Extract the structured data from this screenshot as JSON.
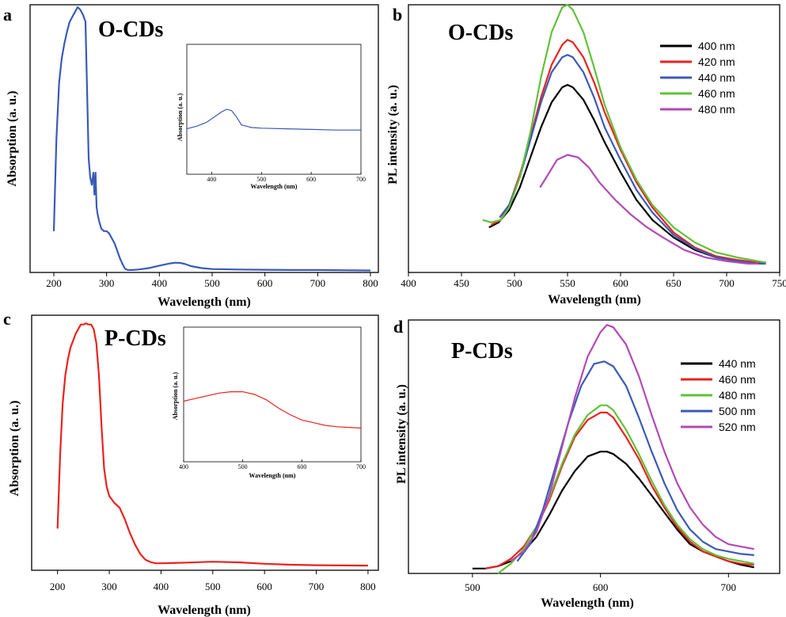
{
  "colors": {
    "black": "#000000",
    "red": "#e8231f",
    "blue": "#3a5bb5",
    "green": "#62c13a",
    "purple": "#b24ab5"
  },
  "chart_data": [
    {
      "panel": "a",
      "type": "line",
      "title": "O-CDs",
      "xlabel": "Wavelength (nm)",
      "ylabel": "Absorption (a. u.)",
      "xlim": [
        155,
        815
      ],
      "ylim": [
        0,
        1.1
      ],
      "xticks": [
        200,
        300,
        400,
        500,
        600,
        700,
        800
      ],
      "y_ticks_shown": false,
      "series": [
        {
          "color": "#3a5bb5",
          "x": [
            200,
            205,
            210,
            215,
            220,
            225,
            230,
            235,
            240,
            245,
            250,
            255,
            260,
            263,
            266,
            269,
            272,
            275,
            277,
            279,
            281,
            283,
            286,
            290,
            295,
            300,
            305,
            310,
            315,
            320,
            325,
            330,
            335,
            340,
            350,
            360,
            380,
            400,
            420,
            430,
            440,
            450,
            460,
            480,
            500,
            550,
            600,
            650,
            700,
            750,
            800
          ],
          "y": [
            0.17,
            0.55,
            0.78,
            0.88,
            0.94,
            0.99,
            1.03,
            1.05,
            1.07,
            1.09,
            1.08,
            1.06,
            1.03,
            0.75,
            0.47,
            0.39,
            0.36,
            0.41,
            0.32,
            0.41,
            0.27,
            0.24,
            0.21,
            0.18,
            0.17,
            0.17,
            0.16,
            0.14,
            0.12,
            0.09,
            0.06,
            0.035,
            0.015,
            0.01,
            0.01,
            0.012,
            0.018,
            0.028,
            0.037,
            0.04,
            0.039,
            0.034,
            0.026,
            0.018,
            0.014,
            0.012,
            0.011,
            0.01,
            0.01,
            0.009,
            0.008
          ]
        }
      ],
      "inset": {
        "xlabel": "Wavelength (nm)",
        "ylabel": "Absorption (a. u.)",
        "xlim": [
          350,
          700
        ],
        "ylim": [
          0,
          1
        ],
        "xticks": [
          400,
          500,
          600,
          700
        ],
        "series": [
          {
            "color": "#3a5bb5",
            "x": [
              350,
              370,
              390,
              405,
              420,
              430,
              440,
              450,
              460,
              470,
              480,
              500,
              550,
              600,
              650,
              700
            ],
            "y": [
              0.35,
              0.37,
              0.4,
              0.44,
              0.48,
              0.5,
              0.49,
              0.44,
              0.38,
              0.37,
              0.36,
              0.355,
              0.35,
              0.345,
              0.34,
              0.34
            ]
          }
        ]
      }
    },
    {
      "panel": "b",
      "type": "line",
      "title": "O-CDs",
      "xlabel": "Wavelength (nm)",
      "ylabel": "PL intensity (a. u.)",
      "xlim": [
        400,
        750
      ],
      "ylim": [
        0,
        1.07
      ],
      "xticks": [
        400,
        450,
        500,
        550,
        600,
        650,
        700,
        750
      ],
      "y_ticks_shown": false,
      "legend_position": "top-right",
      "series": [
        {
          "name": "400 nm",
          "color": "#000000",
          "x": [
            476,
            485,
            495,
            505,
            515,
            525,
            535,
            545,
            550,
            555,
            565,
            575,
            585,
            600,
            615,
            630,
            650,
            670,
            690,
            710,
            730,
            737
          ],
          "y": [
            0.18,
            0.2,
            0.25,
            0.34,
            0.46,
            0.58,
            0.68,
            0.74,
            0.75,
            0.74,
            0.69,
            0.61,
            0.52,
            0.4,
            0.29,
            0.21,
            0.14,
            0.09,
            0.06,
            0.045,
            0.04,
            0.04
          ]
        },
        {
          "name": "420 nm",
          "color": "#e8231f",
          "x": [
            478,
            487,
            495,
            505,
            515,
            525,
            535,
            545,
            550,
            555,
            565,
            575,
            585,
            600,
            615,
            630,
            650,
            670,
            690,
            710,
            730,
            737
          ],
          "y": [
            0.19,
            0.21,
            0.27,
            0.39,
            0.54,
            0.7,
            0.83,
            0.91,
            0.93,
            0.92,
            0.86,
            0.76,
            0.64,
            0.49,
            0.36,
            0.26,
            0.16,
            0.1,
            0.065,
            0.05,
            0.04,
            0.04
          ]
        },
        {
          "name": "440 nm",
          "color": "#3a5bb5",
          "x": [
            486,
            495,
            505,
            515,
            525,
            535,
            545,
            550,
            555,
            565,
            575,
            585,
            600,
            615,
            630,
            650,
            670,
            690,
            710,
            730,
            737
          ],
          "y": [
            0.22,
            0.27,
            0.38,
            0.53,
            0.68,
            0.8,
            0.86,
            0.87,
            0.86,
            0.8,
            0.7,
            0.58,
            0.45,
            0.33,
            0.24,
            0.15,
            0.095,
            0.06,
            0.045,
            0.035,
            0.035
          ]
        },
        {
          "name": "460 nm",
          "color": "#62c13a",
          "x": [
            470,
            478,
            487,
            495,
            505,
            515,
            525,
            535,
            545,
            550,
            555,
            565,
            575,
            585,
            600,
            615,
            630,
            650,
            670,
            690,
            710,
            730,
            737
          ],
          "y": [
            0.21,
            0.2,
            0.21,
            0.26,
            0.38,
            0.56,
            0.78,
            0.96,
            1.06,
            1.07,
            1.05,
            0.96,
            0.82,
            0.67,
            0.5,
            0.37,
            0.27,
            0.18,
            0.12,
            0.08,
            0.06,
            0.045,
            0.04
          ]
        },
        {
          "name": "480 nm",
          "color": "#b24ab5",
          "x": [
            524,
            530,
            540,
            550,
            560,
            570,
            580,
            595,
            610,
            625,
            640,
            660,
            680,
            700,
            720,
            730
          ],
          "y": [
            0.34,
            0.38,
            0.45,
            0.47,
            0.46,
            0.42,
            0.36,
            0.29,
            0.23,
            0.18,
            0.14,
            0.09,
            0.06,
            0.045,
            0.035,
            0.035
          ]
        }
      ]
    },
    {
      "panel": "c",
      "type": "line",
      "title": "P-CDs",
      "xlabel": "Wavelength (nm)",
      "ylabel": "Absorption (a. u.)",
      "xlim": [
        150,
        820
      ],
      "ylim": [
        0,
        1.1
      ],
      "xticks": [
        200,
        300,
        400,
        500,
        600,
        700,
        800
      ],
      "y_ticks_shown": false,
      "series": [
        {
          "color": "#e8231f",
          "x": [
            200,
            205,
            210,
            215,
            220,
            225,
            230,
            235,
            240,
            245,
            250,
            255,
            260,
            265,
            270,
            275,
            280,
            285,
            290,
            295,
            300,
            310,
            320,
            330,
            340,
            350,
            360,
            370,
            380,
            390,
            400,
            420,
            450,
            500,
            550,
            600,
            650,
            700,
            750,
            800
          ],
          "y": [
            0.18,
            0.5,
            0.72,
            0.84,
            0.91,
            0.96,
            0.99,
            1.02,
            1.04,
            1.06,
            1.06,
            1.065,
            1.06,
            1.06,
            1.04,
            0.98,
            0.84,
            0.62,
            0.44,
            0.36,
            0.32,
            0.29,
            0.27,
            0.22,
            0.16,
            0.11,
            0.07,
            0.045,
            0.035,
            0.03,
            0.03,
            0.031,
            0.033,
            0.037,
            0.034,
            0.028,
            0.024,
            0.022,
            0.021,
            0.02
          ]
        }
      ],
      "inset": {
        "xlabel": "Wavelength (nm)",
        "ylabel": "Absorption (a. u.)",
        "xlim": [
          400,
          700
        ],
        "ylim": [
          0,
          1
        ],
        "xticks": [
          400,
          500,
          600,
          700
        ],
        "series": [
          {
            "color": "#e8231f",
            "x": [
              400,
              420,
              440,
              460,
              480,
              500,
              520,
              540,
              560,
              580,
              600,
              620,
              640,
              660,
              680,
              700
            ],
            "y": [
              0.45,
              0.47,
              0.49,
              0.51,
              0.52,
              0.52,
              0.5,
              0.46,
              0.4,
              0.35,
              0.31,
              0.29,
              0.27,
              0.26,
              0.255,
              0.25
            ]
          }
        ]
      }
    },
    {
      "panel": "d",
      "type": "line",
      "title": "P-CDs",
      "xlabel": "Wavelength (nm)",
      "ylabel": "PL intensity (a. u.)",
      "xlim": [
        450,
        740
      ],
      "ylim": [
        0,
        1.04
      ],
      "xticks": [
        500,
        600,
        700
      ],
      "y_ticks_shown": false,
      "legend_position": "top-right",
      "series": [
        {
          "name": "440 nm",
          "color": "#000000",
          "x": [
            500,
            510,
            520,
            530,
            540,
            550,
            560,
            570,
            580,
            590,
            600,
            605,
            610,
            620,
            630,
            640,
            650,
            660,
            670,
            680,
            690,
            700,
            710,
            720
          ],
          "y": [
            0.02,
            0.02,
            0.03,
            0.05,
            0.09,
            0.15,
            0.24,
            0.34,
            0.42,
            0.48,
            0.5,
            0.5,
            0.49,
            0.45,
            0.39,
            0.32,
            0.25,
            0.18,
            0.12,
            0.09,
            0.07,
            0.05,
            0.035,
            0.025
          ]
        },
        {
          "name": "460 nm",
          "color": "#e8231f",
          "x": [
            510,
            520,
            530,
            540,
            550,
            560,
            570,
            580,
            590,
            600,
            605,
            610,
            620,
            630,
            640,
            650,
            660,
            670,
            680,
            690,
            700,
            710,
            720
          ],
          "y": [
            0.02,
            0.03,
            0.06,
            0.11,
            0.19,
            0.3,
            0.44,
            0.56,
            0.63,
            0.66,
            0.66,
            0.64,
            0.56,
            0.47,
            0.36,
            0.27,
            0.19,
            0.13,
            0.09,
            0.07,
            0.05,
            0.04,
            0.035
          ]
        },
        {
          "name": "480 nm",
          "color": "#62c13a",
          "x": [
            520,
            525,
            530,
            540,
            550,
            560,
            570,
            580,
            590,
            600,
            605,
            610,
            620,
            630,
            640,
            650,
            660,
            670,
            680,
            690,
            700,
            710,
            720
          ],
          "y": [
            0.0,
            0.02,
            0.04,
            0.1,
            0.19,
            0.31,
            0.45,
            0.57,
            0.65,
            0.69,
            0.69,
            0.67,
            0.59,
            0.49,
            0.38,
            0.28,
            0.2,
            0.14,
            0.1,
            0.075,
            0.06,
            0.05,
            0.04
          ]
        },
        {
          "name": "500 nm",
          "color": "#3a5bb5",
          "x": [
            535,
            545,
            555,
            565,
            575,
            585,
            595,
            603,
            610,
            620,
            630,
            640,
            650,
            660,
            670,
            680,
            690,
            700,
            710,
            720
          ],
          "y": [
            0.05,
            0.12,
            0.26,
            0.44,
            0.62,
            0.77,
            0.86,
            0.87,
            0.85,
            0.77,
            0.64,
            0.5,
            0.37,
            0.26,
            0.18,
            0.13,
            0.1,
            0.09,
            0.08,
            0.075
          ]
        },
        {
          "name": "520 nm",
          "color": "#b24ab5",
          "x": [
            530,
            540,
            550,
            560,
            570,
            580,
            590,
            600,
            605,
            610,
            620,
            630,
            640,
            650,
            660,
            670,
            680,
            690,
            700,
            710,
            720
          ],
          "y": [
            0.05,
            0.09,
            0.17,
            0.32,
            0.52,
            0.72,
            0.89,
            0.99,
            1.02,
            1.01,
            0.94,
            0.81,
            0.65,
            0.5,
            0.37,
            0.27,
            0.2,
            0.15,
            0.12,
            0.11,
            0.1
          ]
        }
      ]
    }
  ]
}
